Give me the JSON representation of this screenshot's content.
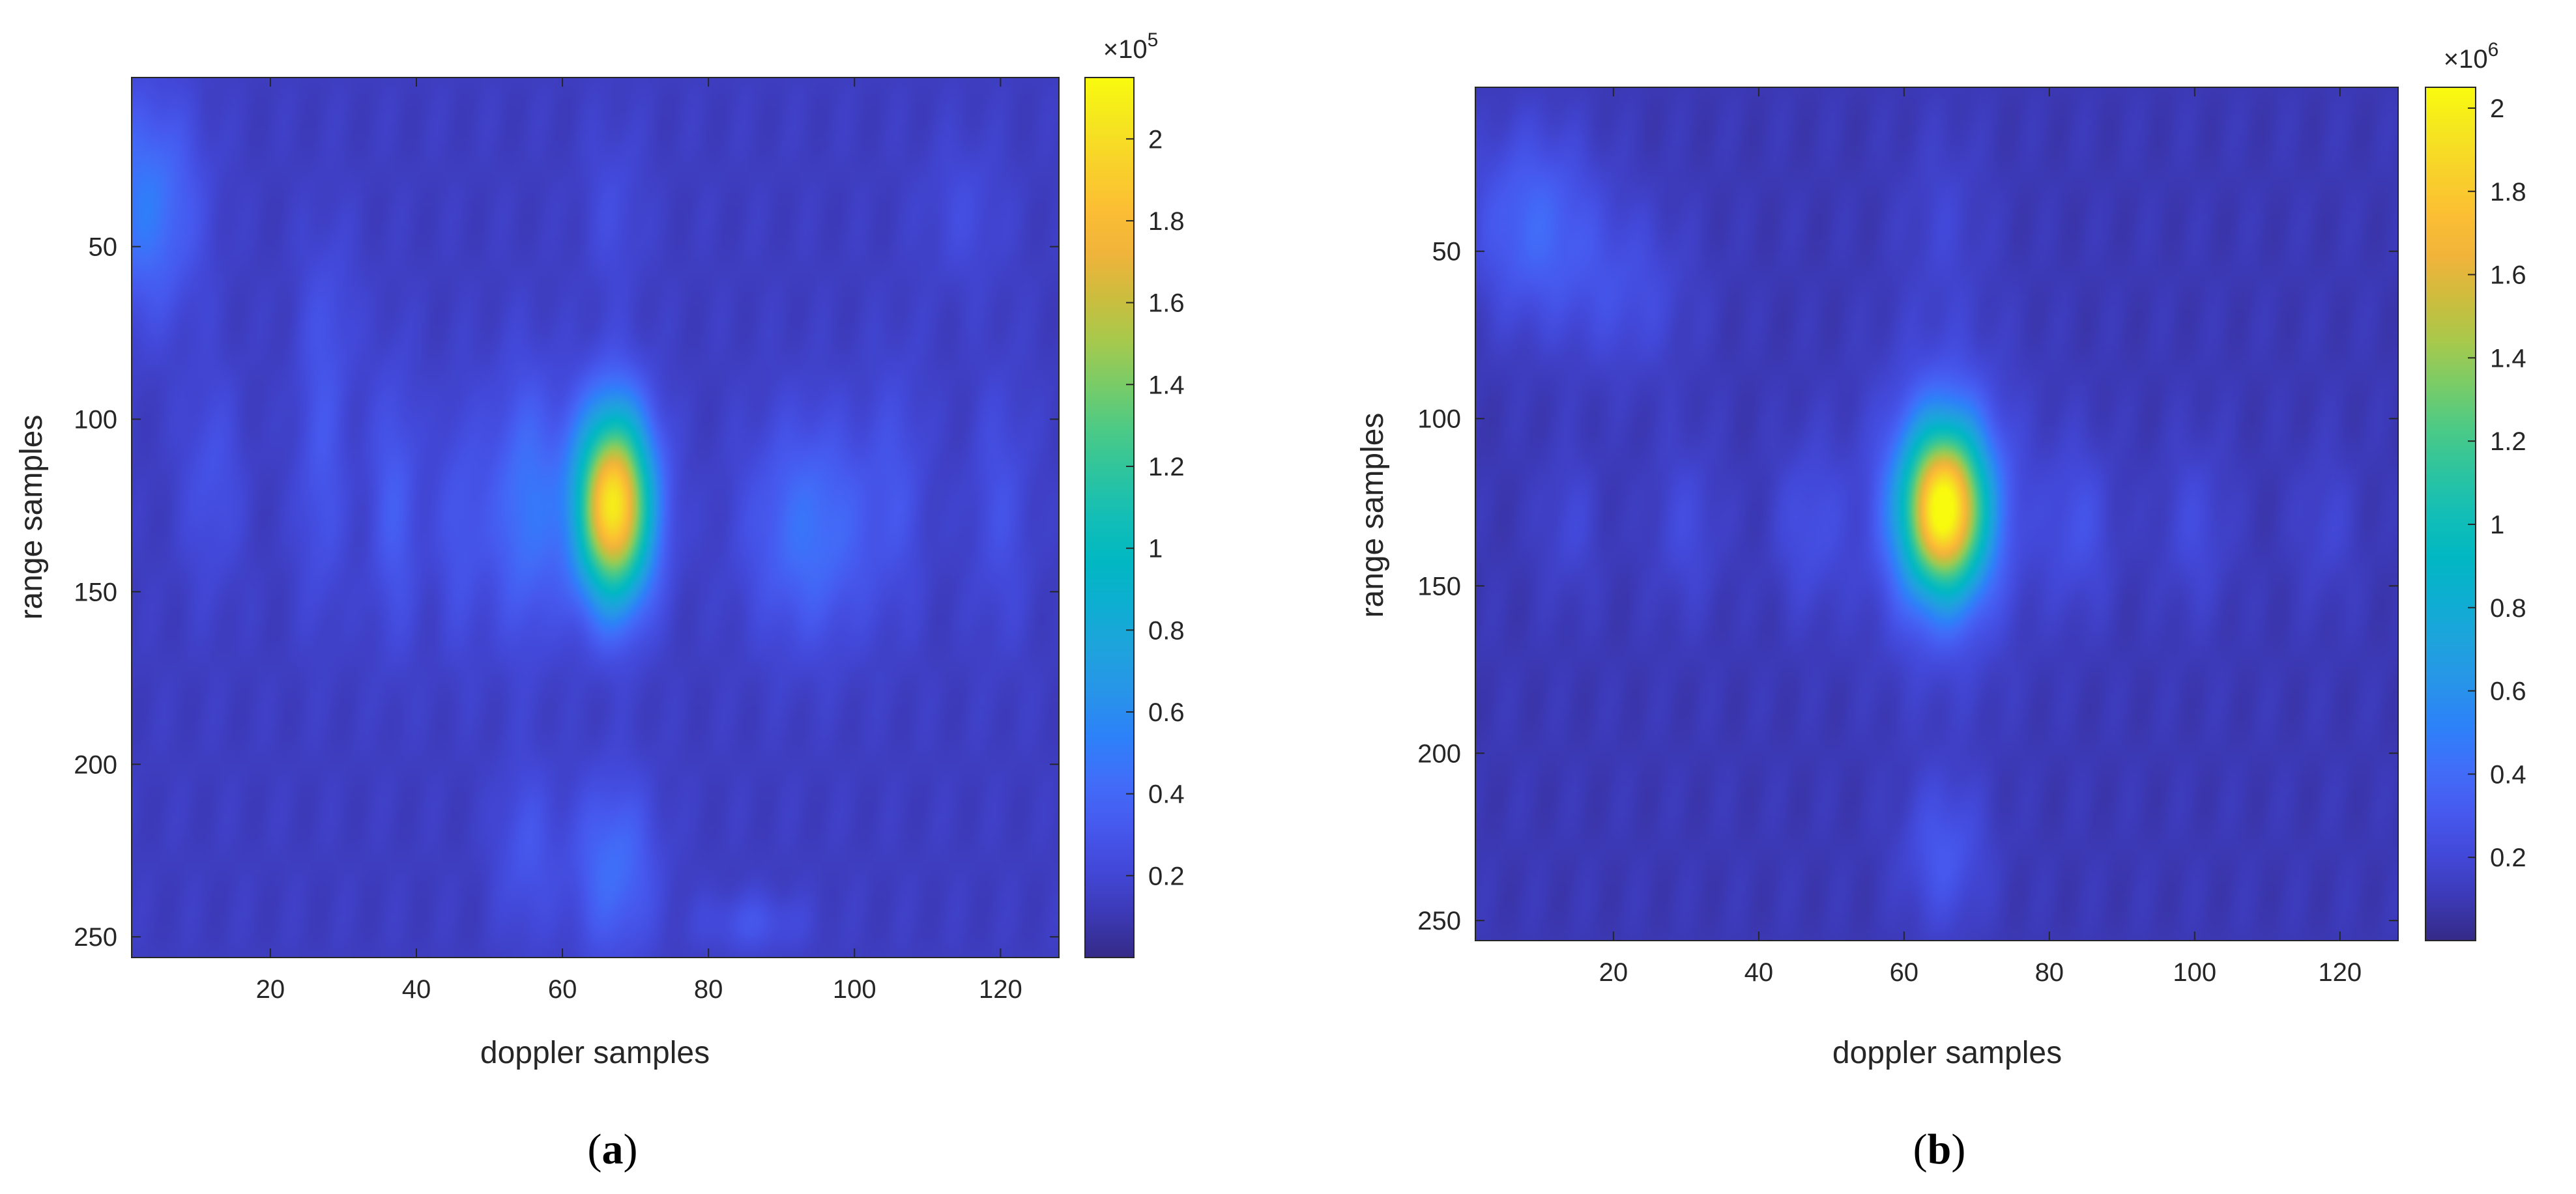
{
  "chart_data": [
    {
      "type": "heatmap",
      "panel_label": "a",
      "xlabel": "doppler samples",
      "ylabel": "range samples",
      "xlim": [
        1,
        128
      ],
      "ylim": [
        1,
        256
      ],
      "y_reversed": true,
      "xticks": [
        20,
        40,
        60,
        80,
        100,
        120
      ],
      "yticks": [
        50,
        100,
        150,
        200,
        250
      ],
      "colormap": "parula",
      "colorbar": {
        "multiplier_label": "×10",
        "exponent": "5",
        "range": [
          0.0,
          2.15
        ],
        "ticks": [
          0.2,
          0.4,
          0.6,
          0.8,
          1,
          1.2,
          1.4,
          1.6,
          1.8,
          2
        ]
      },
      "background_level": 0.14,
      "blobs": [
        {
          "x": 67,
          "y": 125,
          "sx": 3.6,
          "sy": 19,
          "amp": 1.95
        },
        {
          "x": 55,
          "y": 125,
          "sx": 3.5,
          "sy": 26,
          "amp": 0.34
        },
        {
          "x": 94,
          "y": 132,
          "sx": 6,
          "sy": 22,
          "amp": 0.32
        },
        {
          "x": 37,
          "y": 125,
          "sx": 2.5,
          "sy": 28,
          "amp": 0.2
        },
        {
          "x": 27,
          "y": 118,
          "sx": 2.5,
          "sy": 28,
          "amp": 0.16
        },
        {
          "x": 46,
          "y": 130,
          "sx": 2.5,
          "sy": 26,
          "amp": 0.16
        },
        {
          "x": 12,
          "y": 118,
          "sx": 3,
          "sy": 22,
          "amp": 0.14
        },
        {
          "x": 120,
          "y": 125,
          "sx": 3,
          "sy": 26,
          "amp": 0.13
        },
        {
          "x": 106,
          "y": 118,
          "sx": 3,
          "sy": 26,
          "amp": 0.12
        },
        {
          "x": 3,
          "y": 38,
          "sx": 5,
          "sy": 22,
          "amp": 0.36
        },
        {
          "x": 67,
          "y": 230,
          "sx": 4,
          "sy": 18,
          "amp": 0.3
        },
        {
          "x": 55,
          "y": 225,
          "sx": 3,
          "sy": 18,
          "amp": 0.16
        },
        {
          "x": 86,
          "y": 246,
          "sx": 5,
          "sy": 6,
          "amp": 0.15
        },
        {
          "x": 28,
          "y": 70,
          "sx": 3,
          "sy": 20,
          "amp": 0.1
        },
        {
          "x": 67,
          "y": 40,
          "sx": 3,
          "sy": 18,
          "amp": 0.1
        },
        {
          "x": 115,
          "y": 40,
          "sx": 4,
          "sy": 15,
          "amp": 0.1
        }
      ]
    },
    {
      "type": "heatmap",
      "panel_label": "b",
      "xlabel": "doppler samples",
      "ylabel": "range samples",
      "xlim": [
        1,
        128
      ],
      "ylim": [
        1,
        256
      ],
      "y_reversed": true,
      "xticks": [
        20,
        40,
        60,
        80,
        100,
        120
      ],
      "yticks": [
        50,
        100,
        150,
        200,
        250
      ],
      "colormap": "parula",
      "colorbar": {
        "multiplier_label": "×10",
        "exponent": "6",
        "range": [
          0.0,
          2.05
        ],
        "ticks": [
          0.2,
          0.4,
          0.6,
          0.8,
          1,
          1.2,
          1.4,
          1.6,
          1.8,
          2
        ]
      },
      "background_level": 0.1,
      "blobs": [
        {
          "x": 65.5,
          "y": 127,
          "sx": 4,
          "sy": 17,
          "amp": 1.8
        },
        {
          "x": 65.5,
          "y": 127,
          "sx": 7,
          "sy": 32,
          "amp": 0.25
        },
        {
          "x": 84,
          "y": 132,
          "sx": 3.5,
          "sy": 18,
          "amp": 0.16
        },
        {
          "x": 47,
          "y": 132,
          "sx": 3.5,
          "sy": 18,
          "amp": 0.15
        },
        {
          "x": 30,
          "y": 132,
          "sx": 3.5,
          "sy": 18,
          "amp": 0.12
        },
        {
          "x": 100,
          "y": 132,
          "sx": 3.5,
          "sy": 18,
          "amp": 0.12
        },
        {
          "x": 14,
          "y": 132,
          "sx": 3,
          "sy": 16,
          "amp": 0.1
        },
        {
          "x": 118,
          "y": 132,
          "sx": 3,
          "sy": 16,
          "amp": 0.09
        },
        {
          "x": 9,
          "y": 42,
          "sx": 6,
          "sy": 20,
          "amp": 0.28
        },
        {
          "x": 22,
          "y": 62,
          "sx": 6,
          "sy": 18,
          "amp": 0.14
        },
        {
          "x": 65.5,
          "y": 230,
          "sx": 4,
          "sy": 16,
          "amp": 0.2
        },
        {
          "x": 65.5,
          "y": 40,
          "sx": 4,
          "sy": 20,
          "amp": 0.08
        }
      ]
    }
  ]
}
